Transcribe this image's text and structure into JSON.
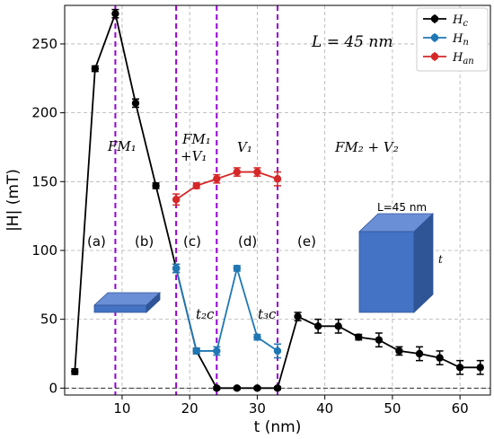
{
  "chart_data": {
    "type": "line",
    "xlabel": "t (nm)",
    "ylabel": "|H| (mT)",
    "xlim": [
      1.5,
      64.5
    ],
    "ylim": [
      -5,
      278
    ],
    "xticks": [
      10,
      20,
      30,
      40,
      50,
      60
    ],
    "yticks": [
      0,
      50,
      100,
      150,
      200,
      250
    ],
    "grid": true,
    "legend_position": "top-right",
    "series": [
      {
        "name": "H_c",
        "color": "#000000",
        "x": [
          3,
          6,
          9,
          12,
          15,
          18,
          21,
          24,
          27,
          30,
          33,
          36,
          39,
          42,
          45,
          48,
          51,
          54,
          57,
          60,
          63
        ],
        "y": [
          12,
          232,
          272,
          207,
          147,
          87,
          27,
          0,
          0,
          0,
          0,
          52,
          45,
          45,
          37,
          35,
          27,
          25,
          22,
          15,
          15
        ],
        "err": [
          2,
          2,
          3,
          3,
          2,
          3,
          2,
          1,
          1,
          1,
          1,
          3,
          5,
          5,
          2,
          5,
          3,
          5,
          5,
          5,
          5
        ]
      },
      {
        "name": "H_n",
        "color": "#1f77b4",
        "x": [
          18,
          21,
          24,
          27,
          30,
          33
        ],
        "y": [
          87,
          27,
          27,
          87,
          37,
          27
        ],
        "err": [
          3,
          2,
          3,
          2,
          2,
          5
        ]
      },
      {
        "name": "H_an",
        "color": "#d62728",
        "x": [
          18,
          21,
          24,
          27,
          30,
          33
        ],
        "y": [
          137,
          147,
          152,
          157,
          157,
          152
        ],
        "err": [
          4,
          2,
          3,
          3,
          3,
          5
        ]
      }
    ],
    "legend_entries": [
      "H_c",
      "H_n",
      "H_an"
    ],
    "vlines": [
      9,
      18,
      24,
      33
    ],
    "hline": 0,
    "annotations": {
      "length": "L = 45 nm",
      "fm1": "FM₁",
      "fm1_v1_top": "FM₁",
      "fm1_v1_bottom": "+V₁",
      "v1": "V₁",
      "fm2_v2": "FM₂ + V₂",
      "region_a": "(a)",
      "region_b": "(b)",
      "region_c": "(c)",
      "region_d": "(d)",
      "region_e": "(e)",
      "t2c": "t₂c",
      "t3c": "t₃c",
      "box_length": "L=45 nm",
      "box_t": "t"
    },
    "colors": {
      "vline": "#9400d3",
      "box_front": "#4472c4",
      "box_side": "#2f5597",
      "box_top": "#6b8fd6"
    }
  }
}
